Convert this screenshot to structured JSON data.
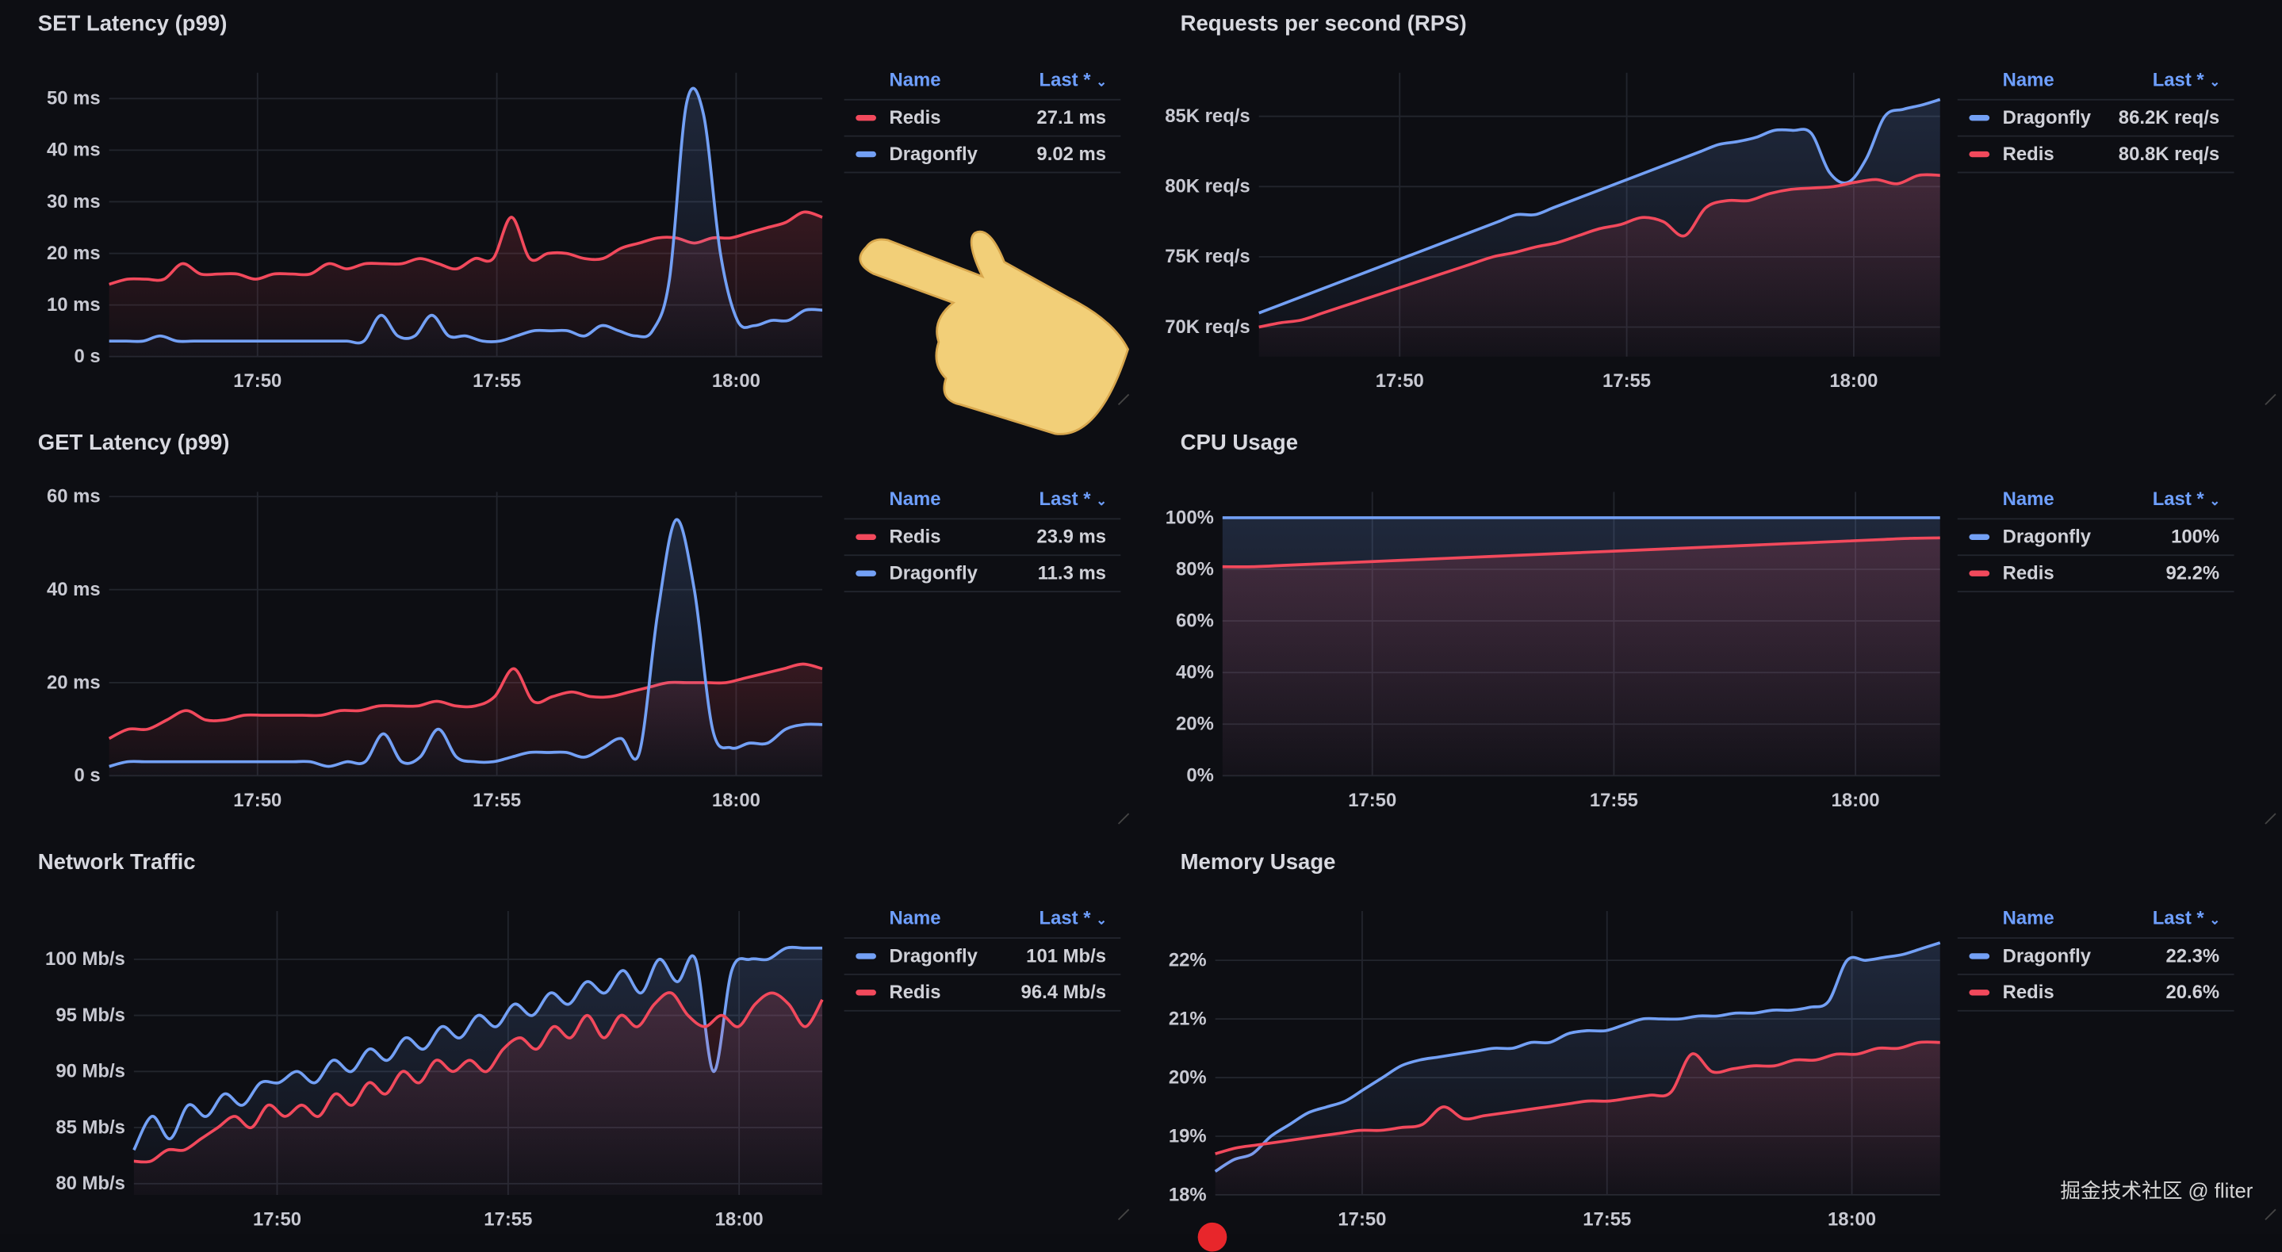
{
  "colors": {
    "redis": "#f2495c",
    "dragonfly": "#73a0f5",
    "grid": "#22252d",
    "axis_text": "#c8c9d2"
  },
  "legend_headers": {
    "name": "Name",
    "last": "Last *",
    "sort_icon": "chevron-down-icon"
  },
  "watermark": "掘金技术社区 @ fliter",
  "x_ticks": [
    {
      "v": 50,
      "label": "17:50"
    },
    {
      "v": 55,
      "label": "17:55"
    },
    {
      "v": 60,
      "label": "18:00"
    }
  ],
  "panels": [
    {
      "id": "set-latency",
      "title": "SET Latency (p99)",
      "ylim": [
        0,
        55
      ],
      "y_ticks": [
        {
          "v": 0,
          "label": "0 s"
        },
        {
          "v": 10,
          "label": "10 ms"
        },
        {
          "v": 20,
          "label": "20 ms"
        },
        {
          "v": 30,
          "label": "30 ms"
        },
        {
          "v": 40,
          "label": "40 ms"
        },
        {
          "v": 50,
          "label": "50 ms"
        }
      ],
      "xlim": [
        46.9,
        61.8
      ],
      "series": [
        {
          "name": "Redis",
          "color": "redis",
          "last": "27.1 ms",
          "values": [
            14,
            15,
            15,
            15,
            18,
            16,
            16,
            16,
            15,
            16,
            16,
            16,
            18,
            17,
            18,
            18,
            18,
            19,
            18,
            17,
            19,
            19,
            27,
            19,
            20,
            20,
            19,
            19,
            21,
            22,
            23,
            23,
            22,
            23,
            23,
            24,
            25,
            26,
            28,
            27
          ]
        },
        {
          "name": "Dragonfly",
          "color": "dragonfly",
          "last": "9.02 ms",
          "values": [
            3,
            3,
            3,
            4,
            3,
            3,
            3,
            3,
            3,
            3,
            3,
            3,
            3,
            3,
            3,
            3,
            8,
            4,
            4,
            8,
            4,
            4,
            3,
            3,
            4,
            5,
            5,
            5,
            4,
            6,
            5,
            4,
            5,
            15,
            49,
            47,
            20,
            7,
            6,
            7,
            7,
            9,
            9
          ]
        }
      ]
    },
    {
      "id": "rps",
      "title": "Requests per second (RPS)",
      "ylim": [
        67.9,
        88.1
      ],
      "y_ticks": [
        {
          "v": 70,
          "label": "70K req/s"
        },
        {
          "v": 75,
          "label": "75K req/s"
        },
        {
          "v": 80,
          "label": "80K req/s"
        },
        {
          "v": 85,
          "label": "85K req/s"
        }
      ],
      "xlim": [
        46.9,
        61.9
      ],
      "series": [
        {
          "name": "Dragonfly",
          "color": "dragonfly",
          "last": "86.2K req/s",
          "values": [
            71,
            71.5,
            72,
            72.5,
            73,
            73.5,
            74,
            74.5,
            75,
            75.5,
            76,
            76.5,
            77,
            77.5,
            78,
            78,
            78.5,
            79,
            79.5,
            80,
            80.5,
            81,
            81.5,
            82,
            82.5,
            83,
            83.2,
            83.5,
            84,
            84,
            83.8,
            81,
            80.3,
            82,
            85,
            85.5,
            85.8,
            86.2
          ]
        },
        {
          "name": "Redis",
          "color": "redis",
          "last": "80.8K req/s",
          "values": [
            70,
            70.3,
            70.5,
            71,
            71.5,
            72,
            72.5,
            73,
            73.5,
            74,
            74.5,
            75,
            75.3,
            75.7,
            76,
            76.5,
            77,
            77.3,
            77.8,
            77.5,
            76.5,
            78.5,
            79,
            79,
            79.5,
            79.8,
            79.9,
            80,
            80.3,
            80.5,
            80.2,
            80.8,
            80.8
          ]
        }
      ]
    },
    {
      "id": "get-latency",
      "title": "GET Latency (p99)",
      "ylim": [
        0,
        61
      ],
      "y_ticks": [
        {
          "v": 0,
          "label": "0 s"
        },
        {
          "v": 20,
          "label": "20 ms"
        },
        {
          "v": 40,
          "label": "40 ms"
        },
        {
          "v": 60,
          "label": "60 ms"
        }
      ],
      "xlim": [
        46.9,
        61.8
      ],
      "series": [
        {
          "name": "Redis",
          "color": "redis",
          "last": "23.9 ms",
          "values": [
            8,
            10,
            10,
            12,
            14,
            12,
            12,
            13,
            13,
            13,
            13,
            13,
            14,
            14,
            15,
            15,
            15,
            16,
            15,
            15,
            17,
            23,
            16,
            17,
            18,
            17,
            17,
            18,
            19,
            20,
            20,
            20,
            20,
            21,
            22,
            23,
            24,
            23
          ]
        },
        {
          "name": "Dragonfly",
          "color": "dragonfly",
          "last": "11.3 ms",
          "values": [
            2,
            3,
            3,
            3,
            3,
            3,
            3,
            3,
            3,
            3,
            3,
            3,
            2,
            3,
            3,
            9,
            3,
            4,
            10,
            4,
            3,
            3,
            4,
            5,
            5,
            5,
            4,
            6,
            8,
            5,
            35,
            55,
            40,
            10,
            6,
            7,
            7,
            10,
            11,
            11
          ]
        }
      ]
    },
    {
      "id": "cpu-usage",
      "title": "CPU Usage",
      "ylim": [
        0,
        110
      ],
      "y_ticks": [
        {
          "v": 0,
          "label": "0%"
        },
        {
          "v": 20,
          "label": "20%"
        },
        {
          "v": 40,
          "label": "40%"
        },
        {
          "v": 60,
          "label": "60%"
        },
        {
          "v": 80,
          "label": "80%"
        },
        {
          "v": 100,
          "label": "100%"
        }
      ],
      "xlim": [
        46.9,
        61.75
      ],
      "series": [
        {
          "name": "Dragonfly",
          "color": "dragonfly",
          "last": "100%",
          "values": [
            100,
            100
          ]
        },
        {
          "name": "Redis",
          "color": "redis",
          "last": "92.2%",
          "values": [
            81,
            81,
            81.5,
            82,
            82.5,
            83,
            83.5,
            84,
            84.5,
            85,
            85.5,
            86,
            86.5,
            87,
            87.5,
            88,
            88.5,
            89,
            89.5,
            90,
            90.5,
            91,
            91.5,
            92,
            92.2
          ]
        }
      ]
    },
    {
      "id": "network-traffic",
      "title": "Network Traffic",
      "ylim": [
        79,
        104.3
      ],
      "y_ticks": [
        {
          "v": 80,
          "label": "80 Mb/s"
        },
        {
          "v": 85,
          "label": "85 Mb/s"
        },
        {
          "v": 90,
          "label": "90 Mb/s"
        },
        {
          "v": 95,
          "label": "95 Mb/s"
        },
        {
          "v": 100,
          "label": "100 Mb/s"
        }
      ],
      "xlim": [
        46.9,
        61.8
      ],
      "series": [
        {
          "name": "Dragonfly",
          "color": "dragonfly",
          "last": "101 Mb/s",
          "values": [
            83,
            86,
            84,
            87,
            86,
            88,
            87,
            89,
            89,
            90,
            89,
            91,
            90,
            92,
            91,
            93,
            92,
            94,
            93,
            95,
            94,
            96,
            95,
            97,
            96,
            98,
            97,
            99,
            97,
            100,
            98,
            100,
            90,
            99,
            100,
            100,
            101,
            101,
            101
          ]
        },
        {
          "name": "Redis",
          "color": "redis",
          "last": "96.4 Mb/s",
          "values": [
            82,
            82,
            83,
            83,
            84,
            85,
            86,
            85,
            87,
            86,
            87,
            86,
            88,
            87,
            89,
            88,
            90,
            89,
            91,
            90,
            91,
            90,
            92,
            93,
            92,
            94,
            93,
            95,
            93,
            95,
            94,
            96,
            97,
            95,
            94,
            95,
            94,
            96,
            97,
            96,
            94,
            96.4
          ]
        }
      ]
    },
    {
      "id": "memory-usage",
      "title": "Memory Usage",
      "ylim": [
        18,
        22.84
      ],
      "y_ticks": [
        {
          "v": 18,
          "label": "18%"
        },
        {
          "v": 19,
          "label": "19%"
        },
        {
          "v": 20,
          "label": "20%"
        },
        {
          "v": 21,
          "label": "21%"
        },
        {
          "v": 22,
          "label": "22%"
        }
      ],
      "xlim": [
        47,
        61.8
      ],
      "series": [
        {
          "name": "Dragonfly",
          "color": "dragonfly",
          "last": "22.3%",
          "values": [
            18.4,
            18.6,
            18.7,
            19.0,
            19.2,
            19.4,
            19.5,
            19.6,
            19.8,
            20.0,
            20.2,
            20.3,
            20.35,
            20.4,
            20.45,
            20.5,
            20.5,
            20.6,
            20.6,
            20.75,
            20.8,
            20.8,
            20.9,
            21,
            21,
            21,
            21.05,
            21.05,
            21.1,
            21.1,
            21.15,
            21.15,
            21.2,
            21.3,
            22.0,
            22.0,
            22.05,
            22.1,
            22.2,
            22.3
          ]
        },
        {
          "name": "Redis",
          "color": "redis",
          "last": "20.6%",
          "values": [
            18.7,
            18.8,
            18.85,
            18.9,
            18.95,
            19.0,
            19.05,
            19.1,
            19.1,
            19.15,
            19.2,
            19.5,
            19.3,
            19.35,
            19.4,
            19.45,
            19.5,
            19.55,
            19.6,
            19.6,
            19.65,
            19.7,
            19.75,
            20.4,
            20.1,
            20.15,
            20.2,
            20.2,
            20.3,
            20.3,
            20.4,
            20.4,
            20.5,
            20.5,
            20.6,
            20.6
          ]
        }
      ]
    }
  ]
}
